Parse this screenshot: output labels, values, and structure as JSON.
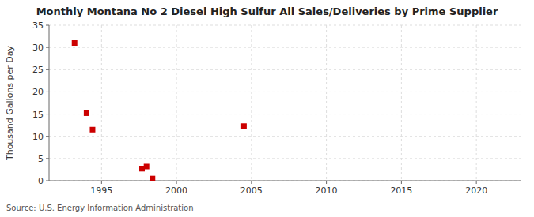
{
  "chart_data": {
    "type": "scatter",
    "title": "Monthly Montana No 2 Diesel High Sulfur All Sales/Deliveries by Prime Supplier",
    "ylabel": "Thousand Gallons per Day",
    "source": "Source: U.S. Energy Information Administration",
    "x": [
      1993.2,
      1994.0,
      1994.4,
      1997.7,
      1998.0,
      1998.4,
      2004.5
    ],
    "values": [
      31.0,
      15.2,
      11.5,
      2.7,
      3.2,
      0.5,
      12.3
    ],
    "color": "#cc0000",
    "marker": "square",
    "xlim": [
      1991.5,
      2023
    ],
    "ylim": [
      0,
      35
    ],
    "xticks": [
      1995,
      2000,
      2005,
      2010,
      2015,
      2020
    ],
    "yticks": [
      0,
      5,
      10,
      15,
      20,
      25,
      30,
      35
    ],
    "grid": true
  }
}
